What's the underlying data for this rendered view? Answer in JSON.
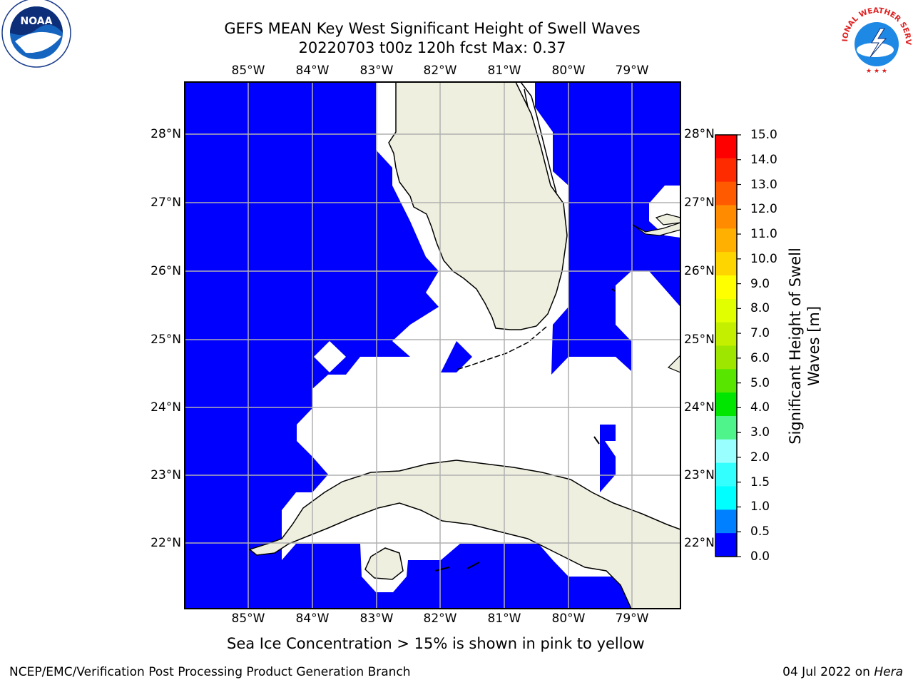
{
  "header": {
    "title_line1": "GEFS MEAN Key West Significant Height of Swell Waves",
    "title_line2": "20220703 t00z 120h fcst   Max: 0.37"
  },
  "map": {
    "lon_labels": [
      "85°W",
      "84°W",
      "83°W",
      "82°W",
      "81°W",
      "80°W",
      "79°W"
    ],
    "lat_labels": [
      "28°N",
      "27°N",
      "26°N",
      "25°N",
      "24°N",
      "23°N",
      "22°N"
    ],
    "colors": {
      "water": "#0000ff",
      "land": "#efefdf",
      "grid": "#b0b0b0",
      "nodata": "#ffffff"
    }
  },
  "colorbar": {
    "title": "Significant Height of Swell Waves [m]",
    "title_line1": "Significant Height of Swell",
    "title_line2": "Waves [m]",
    "ticks": [
      "15.0",
      "14.0",
      "13.0",
      "12.0",
      "11.0",
      "10.0",
      "9.0",
      "8.0",
      "7.0",
      "6.0",
      "5.0",
      "4.0",
      "3.0",
      "2.0",
      "1.5",
      "1.0",
      "0.5",
      "0.0"
    ],
    "colors": [
      "#ff0000",
      "#ff2b00",
      "#ff5a00",
      "#ff8c00",
      "#ffb000",
      "#ffd500",
      "#ffff00",
      "#e2ff00",
      "#c4f000",
      "#9ee600",
      "#58e600",
      "#00e600",
      "#4ff48a",
      "#99ffff",
      "#33ffff",
      "#00ffff",
      "#0080ff",
      "#0000ff"
    ]
  },
  "logos": {
    "left": "NOAA",
    "right": "NATIONAL WEATHER SERVICE"
  },
  "note": "Sea Ice Concentration > 15% is shown in pink to yellow",
  "footer": {
    "left": "NCEP/EMC/Verification Post Processing Product Generation Branch",
    "right_prefix": "04 Jul 2022 on ",
    "right_machine": "Hera"
  }
}
